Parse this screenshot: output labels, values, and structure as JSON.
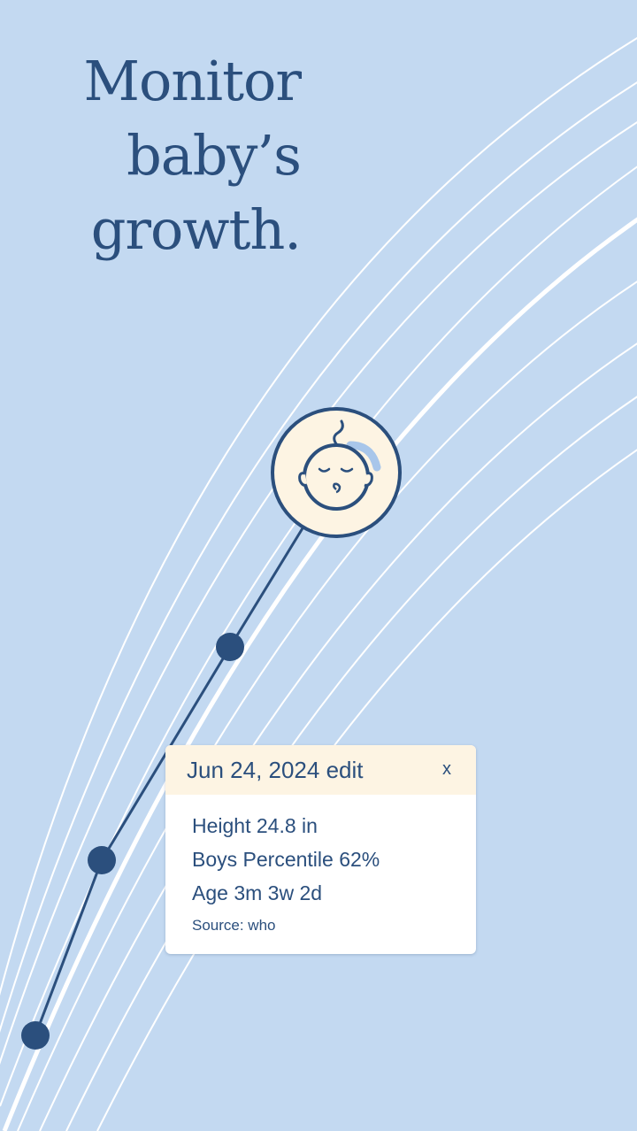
{
  "headline": {
    "line1": "Monitor",
    "line2": "baby’s",
    "line3": "growth."
  },
  "popup": {
    "date": "Jun 24, 2024 edit",
    "close_label": "x",
    "height": "Height 24.8 in",
    "percentile": "Boys Percentile 62%",
    "age": "Age 3m 3w 2d",
    "source": "Source: who"
  },
  "colors": {
    "background": "#c3d9f1",
    "accent": "#2b4f7d",
    "curve": "#ffffff",
    "avatar_bg": "#fdf4e3"
  },
  "icons": {
    "avatar": "sleeping-baby-icon"
  }
}
